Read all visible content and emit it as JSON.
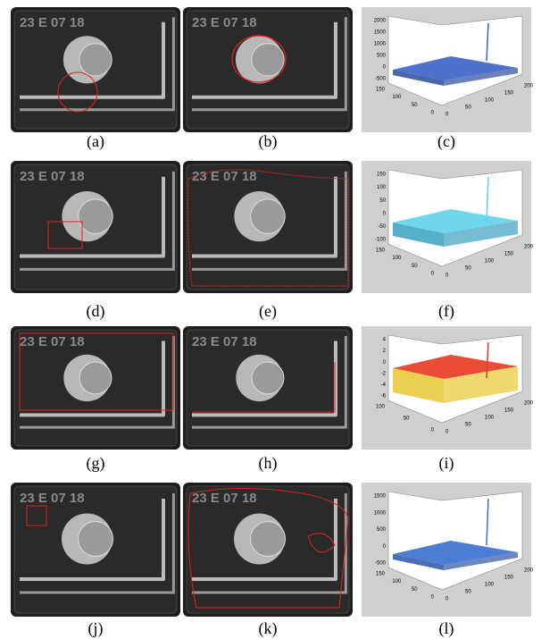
{
  "panels": [
    {
      "kind": "photo",
      "label": "(a)",
      "imprint": "23 E 07 18"
    },
    {
      "kind": "photo",
      "label": "(b)",
      "imprint": "23 E 07 18"
    },
    {
      "kind": "plot",
      "label": "(c)",
      "zticks": [
        2000,
        1500,
        1000,
        500,
        0,
        -500
      ],
      "yticks": [
        150,
        100,
        50,
        0
      ],
      "xticks": [
        0,
        50,
        100,
        150,
        200
      ]
    },
    {
      "kind": "photo",
      "label": "(d)",
      "imprint": "23 E 07 18"
    },
    {
      "kind": "photo",
      "label": "(e)",
      "imprint": "23 E 07 18"
    },
    {
      "kind": "plot",
      "label": "(f)",
      "zticks": [
        150,
        100,
        50,
        0,
        -50,
        -100
      ],
      "yticks": [
        150,
        100,
        50,
        0
      ],
      "xticks": [
        0,
        50,
        100,
        150,
        200
      ]
    },
    {
      "kind": "photo",
      "label": "(g)",
      "imprint": "23 E 07 18"
    },
    {
      "kind": "photo",
      "label": "(h)",
      "imprint": "23 E 07 18"
    },
    {
      "kind": "plot",
      "label": "(i)",
      "zticks": [
        4,
        2,
        0,
        -2,
        -4,
        -6
      ],
      "yticks": [
        100,
        50,
        0
      ],
      "xticks": [
        0,
        50,
        100,
        150,
        200
      ]
    },
    {
      "kind": "photo",
      "label": "(j)",
      "imprint": "23 E 07 18"
    },
    {
      "kind": "photo",
      "label": "(k)",
      "imprint": "23 E 07 18"
    },
    {
      "kind": "plot",
      "label": "(l)",
      "zticks": [
        1500,
        1000,
        500,
        0,
        -500
      ],
      "yticks": [
        150,
        100,
        50,
        0
      ],
      "xticks": [
        0,
        50,
        100,
        150,
        200
      ]
    }
  ]
}
